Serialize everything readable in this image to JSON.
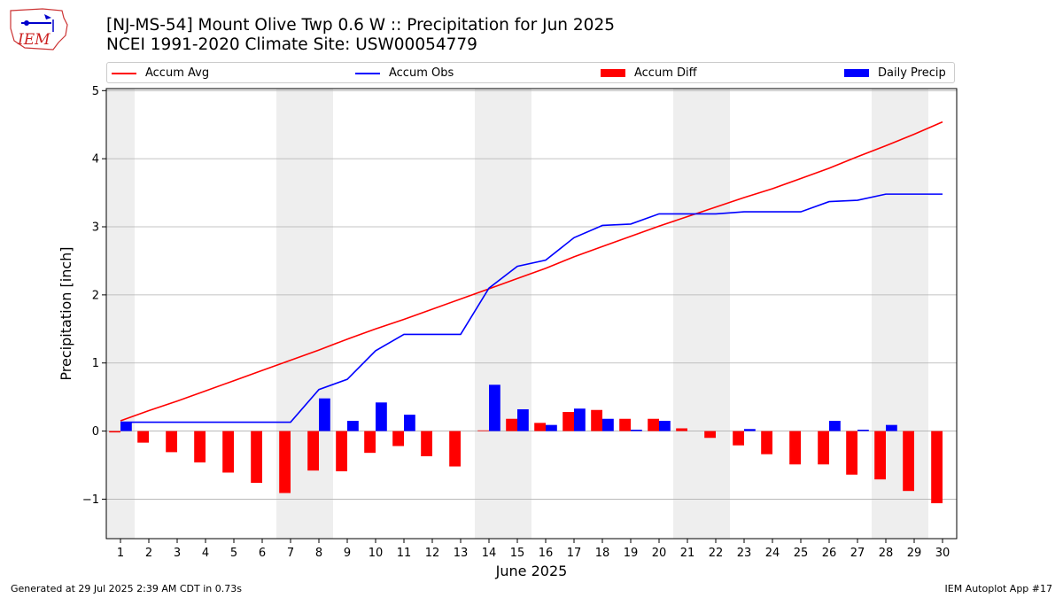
{
  "header": {
    "logo_text": "IEM",
    "title_line1": "[NJ-MS-54] Mount Olive Twp 0.6 W :: Precipitation for Jun 2025",
    "title_line2": "NCEI 1991-2020 Climate Site: USW00054779"
  },
  "legend": {
    "accum_avg": "Accum Avg",
    "accum_obs": "Accum Obs",
    "accum_diff": "Accum Diff",
    "daily_precip": "Daily Precip"
  },
  "footer": {
    "generated": "Generated at 29 Jul 2025 2:39 AM CDT in 0.73s",
    "app": "IEM Autoplot App #17"
  },
  "colors": {
    "avg": "#ff0000",
    "obs": "#0000ff",
    "diff": "#ff0000",
    "daily": "#0000ff",
    "weekend_shade": "#eeeeee",
    "grid": "#b0b0b0"
  },
  "chart_data": {
    "type": "bar",
    "xlabel": "June 2025",
    "ylabel": "Precipitation [inch]",
    "xlim": [
      0.5,
      30.5
    ],
    "ylim": [
      -1.58,
      5.03
    ],
    "yticks": [
      -1,
      0,
      1,
      2,
      3,
      4,
      5
    ],
    "ytick_labels": [
      "−1",
      "0",
      "1",
      "2",
      "3",
      "4",
      "5"
    ],
    "grid": "horizontal",
    "legend_position": "top",
    "days": [
      1,
      2,
      3,
      4,
      5,
      6,
      7,
      8,
      9,
      10,
      11,
      12,
      13,
      14,
      15,
      16,
      17,
      18,
      19,
      20,
      21,
      22,
      23,
      24,
      25,
      26,
      27,
      28,
      29,
      30
    ],
    "weekend_days": [
      1,
      7,
      8,
      14,
      15,
      21,
      22,
      28,
      29
    ],
    "series": [
      {
        "name": "Accum Avg",
        "kind": "line",
        "values": [
          0.15,
          0.3,
          0.44,
          0.59,
          0.74,
          0.89,
          1.04,
          1.19,
          1.35,
          1.5,
          1.64,
          1.79,
          1.94,
          2.09,
          2.24,
          2.39,
          2.56,
          2.71,
          2.86,
          3.01,
          3.15,
          3.29,
          3.43,
          3.56,
          3.71,
          3.86,
          4.03,
          4.19,
          4.36,
          4.54
        ]
      },
      {
        "name": "Accum Obs",
        "kind": "line",
        "values": [
          0.13,
          0.13,
          0.13,
          0.13,
          0.13,
          0.13,
          0.13,
          0.61,
          0.76,
          1.18,
          1.42,
          1.42,
          1.42,
          2.1,
          2.42,
          2.51,
          2.84,
          3.02,
          3.04,
          3.19,
          3.19,
          3.19,
          3.22,
          3.22,
          3.22,
          3.37,
          3.39,
          3.48,
          3.48,
          3.48
        ]
      },
      {
        "name": "Accum Diff",
        "kind": "bar",
        "values": [
          -0.02,
          -0.17,
          -0.31,
          -0.46,
          -0.61,
          -0.76,
          -0.91,
          -0.58,
          -0.59,
          -0.32,
          -0.22,
          -0.37,
          -0.52,
          0.01,
          0.18,
          0.12,
          0.28,
          0.31,
          0.18,
          0.18,
          0.04,
          -0.1,
          -0.21,
          -0.34,
          -0.49,
          -0.49,
          -0.64,
          -0.71,
          -0.88,
          -1.06
        ]
      },
      {
        "name": "Daily Precip",
        "kind": "bar",
        "values": [
          0.13,
          0,
          0,
          0,
          0,
          0,
          0,
          0.48,
          0.15,
          0.42,
          0.24,
          0,
          0,
          0.68,
          0.32,
          0.09,
          0.33,
          0.18,
          0.02,
          0.15,
          0,
          0,
          0.03,
          0,
          0,
          0.15,
          0.02,
          0.09,
          0,
          0
        ]
      }
    ]
  }
}
